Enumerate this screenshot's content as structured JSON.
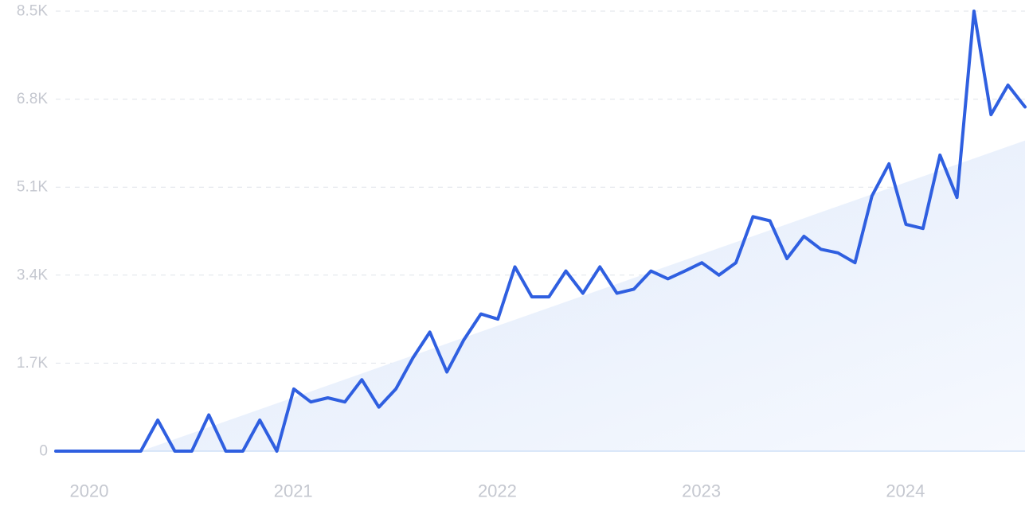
{
  "chart_data": {
    "type": "line",
    "title": "",
    "xlabel": "",
    "ylabel": "",
    "ylim": [
      0,
      8500
    ],
    "y_ticks": [
      {
        "value": 0,
        "label": "0"
      },
      {
        "value": 1700,
        "label": "1.7K"
      },
      {
        "value": 3400,
        "label": "3.4K"
      },
      {
        "value": 5100,
        "label": "5.1K"
      },
      {
        "value": 6800,
        "label": "6.8K"
      },
      {
        "value": 8500,
        "label": "8.5K"
      }
    ],
    "x_ticks": [
      {
        "value": "2020-01",
        "label": "2020"
      },
      {
        "value": "2021-01",
        "label": "2021"
      },
      {
        "value": "2022-01",
        "label": "2022"
      },
      {
        "value": "2023-01",
        "label": "2023"
      },
      {
        "value": "2024-01",
        "label": "2024"
      }
    ],
    "grid": true,
    "legend": "none",
    "colors": {
      "line": "#2f5fe0",
      "trend_fill": "#e6effc",
      "grid": "#dfe3ea",
      "tick_text": "#c5c8d0"
    },
    "trend": {
      "start": {
        "x": "2020-06",
        "y": 0
      },
      "end": {
        "x": "2024-10",
        "y": 6000
      }
    },
    "series": [
      {
        "x": [
          "2020-01",
          "2020-02",
          "2020-03",
          "2020-04",
          "2020-05",
          "2020-06",
          "2020-07",
          "2020-08",
          "2020-09",
          "2020-10",
          "2020-11",
          "2020-12",
          "2021-01",
          "2021-02",
          "2021-03",
          "2021-04",
          "2021-05",
          "2021-06",
          "2021-07",
          "2021-08",
          "2021-09",
          "2021-10",
          "2021-11",
          "2021-12",
          "2022-01",
          "2022-02",
          "2022-03",
          "2022-04",
          "2022-05",
          "2022-06",
          "2022-07",
          "2022-08",
          "2022-09",
          "2022-10",
          "2022-11",
          "2022-12",
          "2023-01",
          "2023-02",
          "2023-03",
          "2023-04",
          "2023-05",
          "2023-06",
          "2023-07",
          "2023-08",
          "2023-09",
          "2023-10",
          "2023-11",
          "2023-12",
          "2024-01",
          "2024-02",
          "2024-03",
          "2024-04",
          "2024-05",
          "2024-06",
          "2024-07",
          "2024-08",
          "2024-09",
          "2024-10"
        ],
        "values": [
          0,
          0,
          0,
          0,
          0,
          0,
          600,
          0,
          0,
          700,
          0,
          0,
          600,
          0,
          1200,
          950,
          1030,
          950,
          1380,
          850,
          1200,
          1800,
          2300,
          1530,
          2150,
          2650,
          2550,
          3560,
          2980,
          2980,
          3480,
          3050,
          3560,
          3050,
          3130,
          3480,
          3330,
          3480,
          3640,
          3400,
          3640,
          4530,
          4450,
          3720,
          4150,
          3900,
          3830,
          3640,
          4930,
          5550,
          4380,
          4300,
          5720,
          4900,
          8500,
          6500,
          7070,
          6650
        ]
      }
    ]
  }
}
